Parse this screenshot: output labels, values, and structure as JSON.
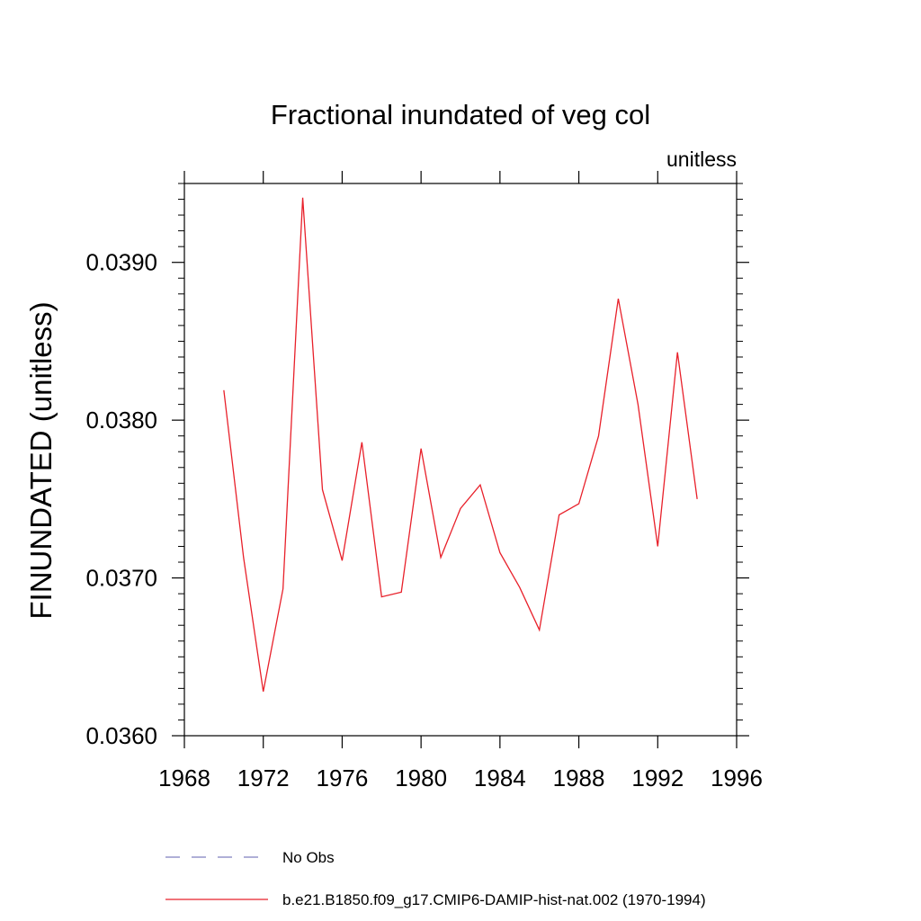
{
  "chart_data": {
    "type": "line",
    "title": "Fractional inundated of veg col",
    "units_label": "unitless",
    "ylabel": "FINUNDATED  (unitless)",
    "xlabel": "",
    "xlim": [
      1968,
      1996
    ],
    "ylim": [
      0.036,
      0.0395
    ],
    "x_ticks": [
      1968,
      1972,
      1976,
      1980,
      1984,
      1988,
      1992,
      1996
    ],
    "x_tick_labels": [
      "1968",
      "1972",
      "1976",
      "1980",
      "1984",
      "1988",
      "1992",
      "1996"
    ],
    "y_ticks": [
      0.036,
      0.037,
      0.038,
      0.039
    ],
    "y_tick_labels": [
      "0.0360",
      "0.0370",
      "0.0380",
      "0.0390"
    ],
    "grid": false,
    "legend_position": "bottom",
    "series": [
      {
        "name": "No Obs",
        "color": "#7f7fbf",
        "dash": "dashed",
        "x": [],
        "y": []
      },
      {
        "name": "b.e21.B1850.f09_g17.CMIP6-DAMIP-hist-nat.002 (1970-1994)",
        "color": "#e8202a",
        "dash": "solid",
        "x": [
          1970,
          1971,
          1972,
          1973,
          1974,
          1975,
          1976,
          1977,
          1978,
          1979,
          1980,
          1981,
          1982,
          1983,
          1984,
          1985,
          1986,
          1987,
          1988,
          1989,
          1990,
          1991,
          1992,
          1993,
          1994
        ],
        "y": [
          0.03819,
          0.03713,
          0.03628,
          0.03693,
          0.03941,
          0.03756,
          0.03711,
          0.03786,
          0.03688,
          0.03691,
          0.03782,
          0.03713,
          0.03744,
          0.03759,
          0.03716,
          0.03694,
          0.03667,
          0.0374,
          0.03747,
          0.0379,
          0.03877,
          0.0381,
          0.0372,
          0.03843,
          0.0375
        ]
      }
    ]
  }
}
